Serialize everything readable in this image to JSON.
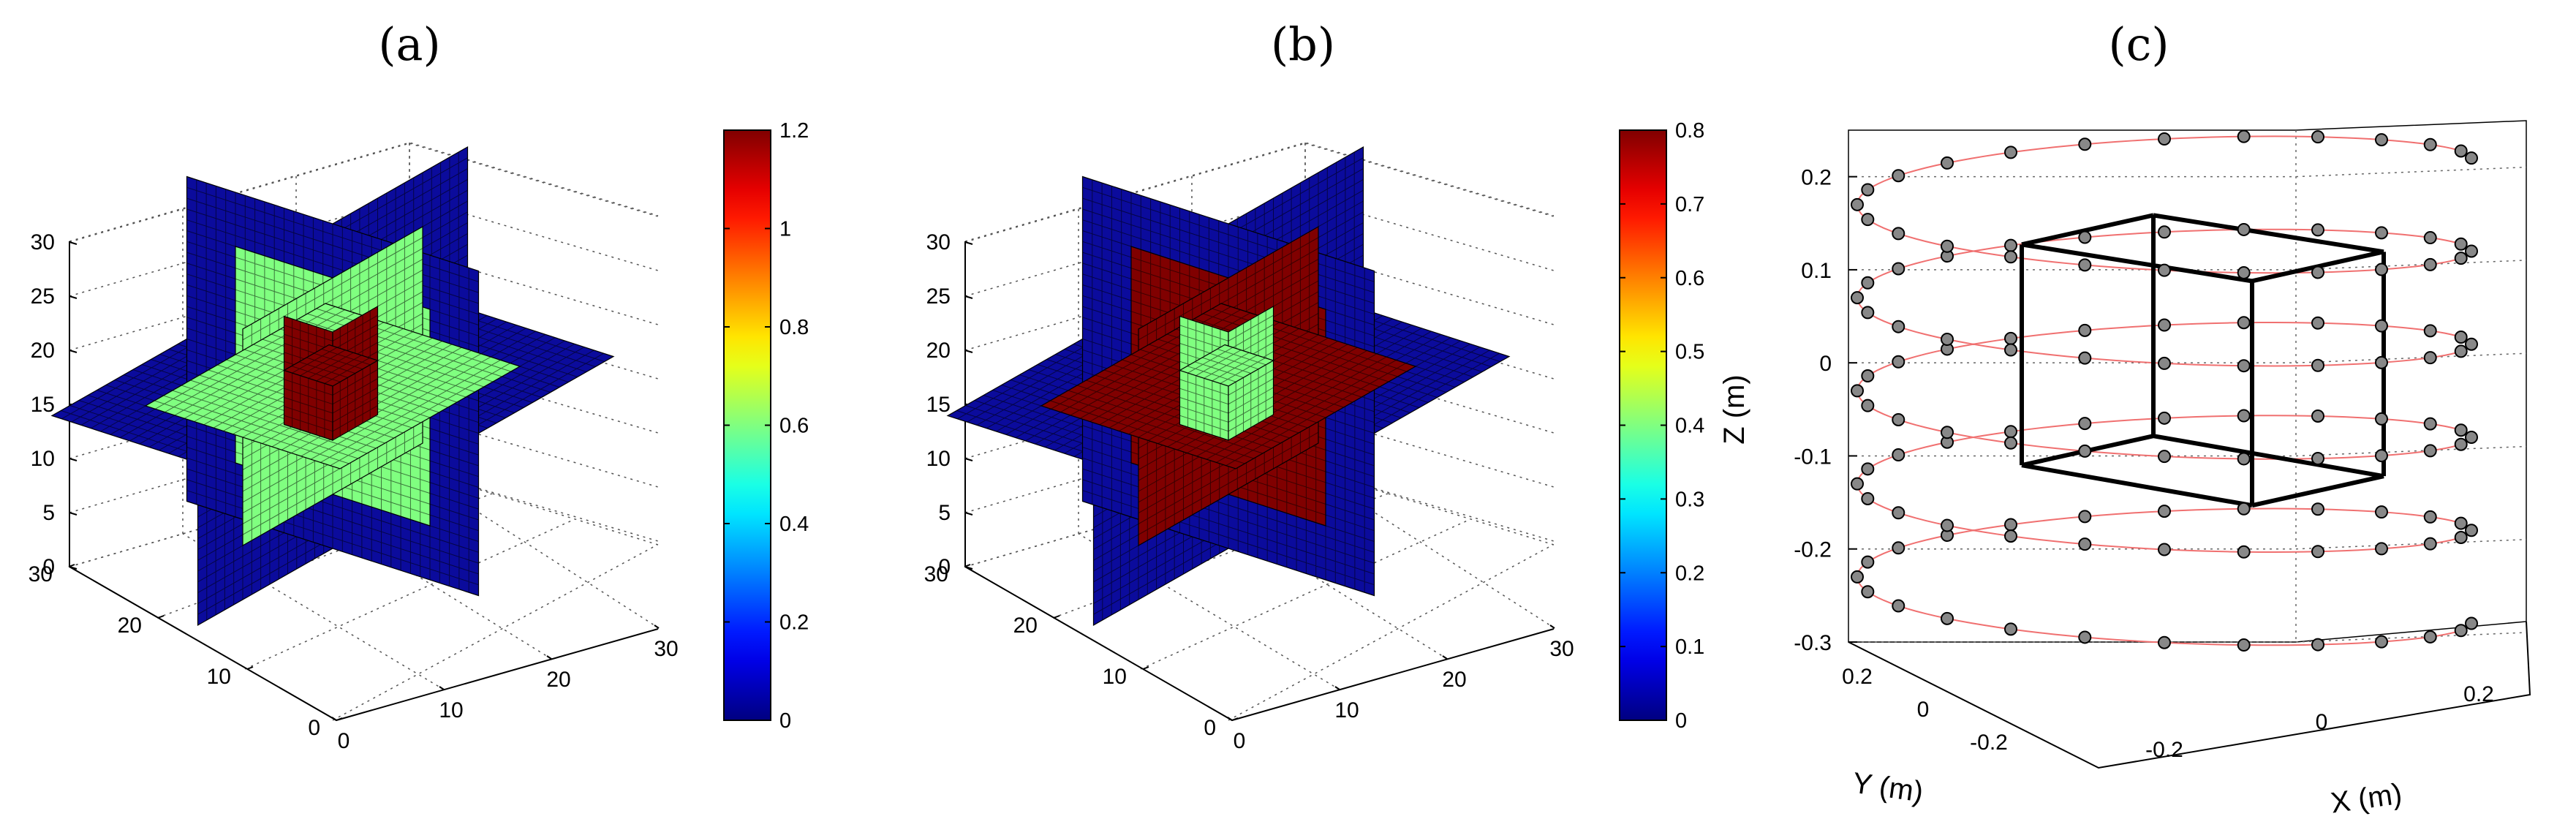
{
  "colors": {
    "outer": "#0b0b9c",
    "band_a": "#96f585",
    "inner_a": "#800000",
    "band_b": "#8b0b00",
    "inner_b": "#9cf58a",
    "helix": "#f07070",
    "sensor": "#888888"
  },
  "chart_data": [
    {
      "type": "heatmap",
      "panel": "(a)",
      "description_axes": {
        "xticks": [
          "0",
          "10",
          "20",
          "30"
        ],
        "yticks": [
          "0",
          "10",
          "20",
          "30"
        ],
        "zticks": [
          "0",
          "5",
          "10",
          "15",
          "20",
          "25",
          "30"
        ]
      },
      "colorbar": {
        "min": 0,
        "max": 1.2,
        "ticks": [
          "0",
          "0.2",
          "0.4",
          "0.6",
          "0.8",
          "1",
          "1.2"
        ]
      },
      "regions": [
        {
          "region": "outer star slices",
          "value": 0.0
        },
        {
          "region": "middle cube",
          "value": 0.6
        },
        {
          "region": "inner cube",
          "value": 1.2
        }
      ],
      "grid": true
    },
    {
      "type": "heatmap",
      "panel": "(b)",
      "description_axes": {
        "xticks": [
          "0",
          "10",
          "20",
          "30"
        ],
        "yticks": [
          "0",
          "10",
          "20",
          "30"
        ],
        "zticks": [
          "0",
          "5",
          "10",
          "15",
          "20",
          "25",
          "30"
        ]
      },
      "colorbar": {
        "min": 0,
        "max": 0.8,
        "ticks": [
          "0",
          "0.1",
          "0.2",
          "0.3",
          "0.4",
          "0.5",
          "0.6",
          "0.7",
          "0.8"
        ]
      },
      "regions": [
        {
          "region": "outer star slices",
          "value": 0.0
        },
        {
          "region": "middle cube",
          "value": 0.8
        },
        {
          "region": "inner cube",
          "value": 0.4
        }
      ],
      "grid": true
    },
    {
      "type": "scatter",
      "panel": "(c)",
      "xlabel": "X (m)",
      "ylabel": "Y (m)",
      "zlabel": "Z (m)",
      "xticks": [
        "-0.2",
        "0",
        "0.2"
      ],
      "yticks": [
        "-0.2",
        "0",
        "0.2"
      ],
      "zticks": [
        "0.2",
        "0.1",
        "0",
        "-0.1",
        "-0.2",
        "-0.3"
      ],
      "zlim": [
        -0.3,
        0.25
      ],
      "helix": {
        "radius": 0.23,
        "turns": 5,
        "z_start": -0.28,
        "z_end": 0.22,
        "sensors_per_turn": 24
      },
      "cube": {
        "half_side": 0.1,
        "center": [
          0,
          0,
          0
        ]
      },
      "grid": true
    }
  ]
}
